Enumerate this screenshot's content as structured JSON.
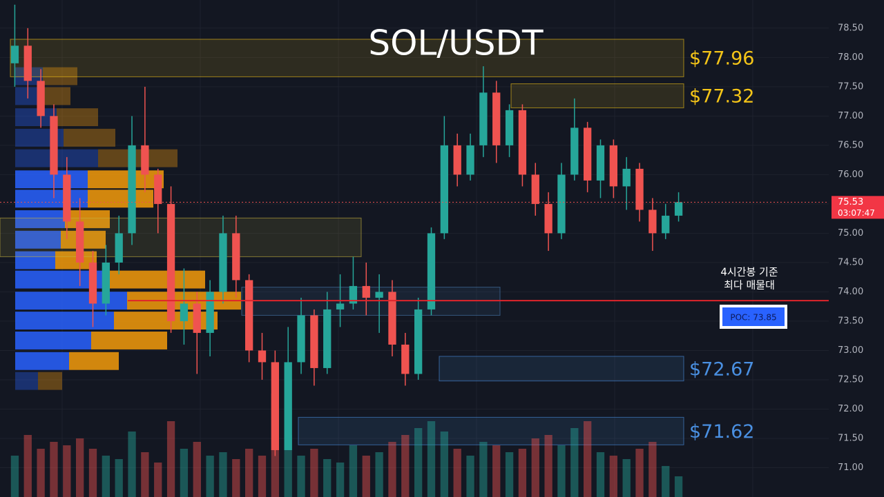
{
  "chart_data": {
    "type": "candlestick",
    "title": "SOL/USDT",
    "open": [
      77.9,
      78.2,
      77.6,
      77.0,
      76.0,
      75.2,
      74.5,
      73.8,
      74.5,
      75.0,
      76.5,
      76.0,
      75.5,
      73.5,
      73.8,
      73.3,
      74.0,
      75.0,
      74.2,
      73.0,
      72.8,
      71.3,
      72.8,
      73.6,
      72.7,
      73.7,
      73.8,
      74.1,
      73.9,
      74.0,
      73.1,
      72.6,
      73.7,
      75.0,
      76.5,
      76.0,
      76.5,
      77.4,
      76.5,
      77.1,
      76.0,
      75.5,
      75.0,
      76.0,
      76.8,
      75.9,
      76.5,
      75.8,
      76.1,
      75.4,
      75.0,
      75.3
    ],
    "high": [
      78.9,
      78.5,
      77.8,
      77.2,
      76.3,
      75.6,
      74.7,
      74.8,
      75.3,
      77.0,
      77.5,
      76.1,
      75.8,
      74.4,
      74.0,
      74.2,
      75.3,
      75.3,
      74.3,
      73.3,
      73.0,
      73.4,
      73.9,
      73.7,
      74.0,
      74.3,
      74.6,
      74.5,
      74.3,
      74.2,
      73.3,
      73.9,
      75.1,
      77.0,
      76.7,
      76.7,
      77.85,
      77.6,
      77.2,
      77.2,
      76.2,
      75.7,
      76.2,
      77.3,
      76.9,
      76.6,
      76.6,
      76.3,
      76.2,
      75.6,
      75.5,
      75.7
    ],
    "low": [
      77.5,
      77.3,
      76.8,
      75.6,
      74.9,
      74.1,
      73.4,
      73.6,
      74.3,
      74.8,
      75.7,
      75.0,
      73.3,
      73.1,
      72.6,
      72.9,
      73.8,
      73.9,
      72.8,
      72.5,
      71.2,
      71.3,
      72.6,
      72.4,
      72.6,
      73.4,
      73.7,
      73.6,
      73.3,
      72.9,
      72.4,
      72.5,
      73.6,
      74.9,
      75.8,
      75.9,
      76.3,
      76.2,
      76.3,
      75.8,
      75.3,
      74.7,
      74.9,
      75.9,
      75.7,
      75.6,
      75.6,
      75.4,
      75.2,
      74.7,
      74.9,
      75.2
    ],
    "close": [
      78.2,
      77.6,
      77.0,
      76.0,
      75.2,
      74.5,
      73.8,
      74.5,
      75.0,
      76.5,
      76.0,
      75.5,
      73.5,
      73.8,
      73.3,
      74.0,
      75.0,
      74.2,
      73.0,
      72.8,
      71.3,
      72.8,
      73.6,
      72.7,
      73.7,
      73.8,
      74.1,
      73.9,
      74.0,
      73.1,
      72.6,
      73.7,
      75.0,
      76.5,
      76.0,
      76.5,
      77.4,
      76.5,
      77.1,
      76.0,
      75.5,
      75.0,
      76.0,
      76.8,
      75.9,
      76.5,
      75.8,
      76.1,
      75.4,
      75.0,
      75.3,
      75.53
    ],
    "volume": [
      60,
      90,
      70,
      80,
      75,
      85,
      70,
      60,
      55,
      95,
      65,
      50,
      110,
      70,
      80,
      60,
      65,
      55,
      70,
      60,
      150,
      90,
      60,
      70,
      55,
      50,
      75,
      60,
      65,
      80,
      90,
      100,
      110,
      95,
      70,
      60,
      80,
      75,
      65,
      70,
      85,
      90,
      75,
      100,
      110,
      65,
      60,
      55,
      70,
      80,
      45,
      30
    ],
    "up_color": "#26a69a",
    "down_color": "#ef5350",
    "ylim": [
      70.5,
      78.98
    ],
    "yticks": [
      {
        "value": 71,
        "label": "71.00"
      },
      {
        "value": 71.5,
        "label": "71.50"
      },
      {
        "value": 72,
        "label": "72.00"
      },
      {
        "value": 72.5,
        "label": "72.50"
      },
      {
        "value": 73,
        "label": "73.00"
      },
      {
        "value": 73.5,
        "label": "73.50"
      },
      {
        "value": 74,
        "label": "74.00"
      },
      {
        "value": 74.5,
        "label": "74.50"
      },
      {
        "value": 75,
        "label": "75.00"
      },
      {
        "value": 75.5,
        "label": "75.50"
      },
      {
        "value": 76,
        "label": "76.00"
      },
      {
        "value": 76.5,
        "label": "76.50"
      },
      {
        "value": 77,
        "label": "77.00"
      },
      {
        "value": 77.5,
        "label": "77.50"
      },
      {
        "value": 78,
        "label": "78.00"
      },
      {
        "value": 78.5,
        "label": "78.50"
      }
    ],
    "grid": true,
    "last_price": {
      "value": 75.53,
      "label": "75.53",
      "countdown": "03:07:47"
    },
    "poc": {
      "value": 73.85,
      "label": "POC: 73.85",
      "annotation": [
        "4시간봉 기준",
        "최다 매물대"
      ]
    },
    "zones": [
      {
        "label": "$77.96",
        "low": 77.67,
        "high": 78.31,
        "color": "#f5c518"
      },
      {
        "label": "$77.32",
        "low": 77.14,
        "high": 77.55,
        "color": "#f5c518"
      },
      {
        "low": 74.6,
        "high": 75.26,
        "color": "#c9b440"
      },
      {
        "low": 73.6,
        "high": 74.08,
        "color": "#4a7fb5"
      },
      {
        "label": "$72.67",
        "low": 72.48,
        "high": 72.9,
        "color": "#4a90e2"
      },
      {
        "label": "$71.62",
        "low": 71.39,
        "high": 71.86,
        "color": "#4a90e2"
      }
    ],
    "volume_profile": {
      "value_area": [
        72.65,
        76.1
      ],
      "price": [
        77.68,
        77.34,
        76.98,
        76.63,
        76.28,
        75.92,
        75.59,
        75.24,
        74.89,
        74.54,
        74.21,
        73.85,
        73.51,
        73.17,
        72.82,
        72.48
      ],
      "buy": [
        40,
        40,
        60,
        70,
        120,
        105,
        105,
        72,
        66,
        58,
        137,
        162,
        143,
        110,
        78,
        33
      ],
      "sell": [
        50,
        40,
        60,
        75,
        115,
        110,
        95,
        65,
        65,
        60,
        138,
        165,
        150,
        110,
        72,
        35
      ],
      "buy_color": "#2962ff",
      "sell_color": "#f59b0b"
    }
  }
}
